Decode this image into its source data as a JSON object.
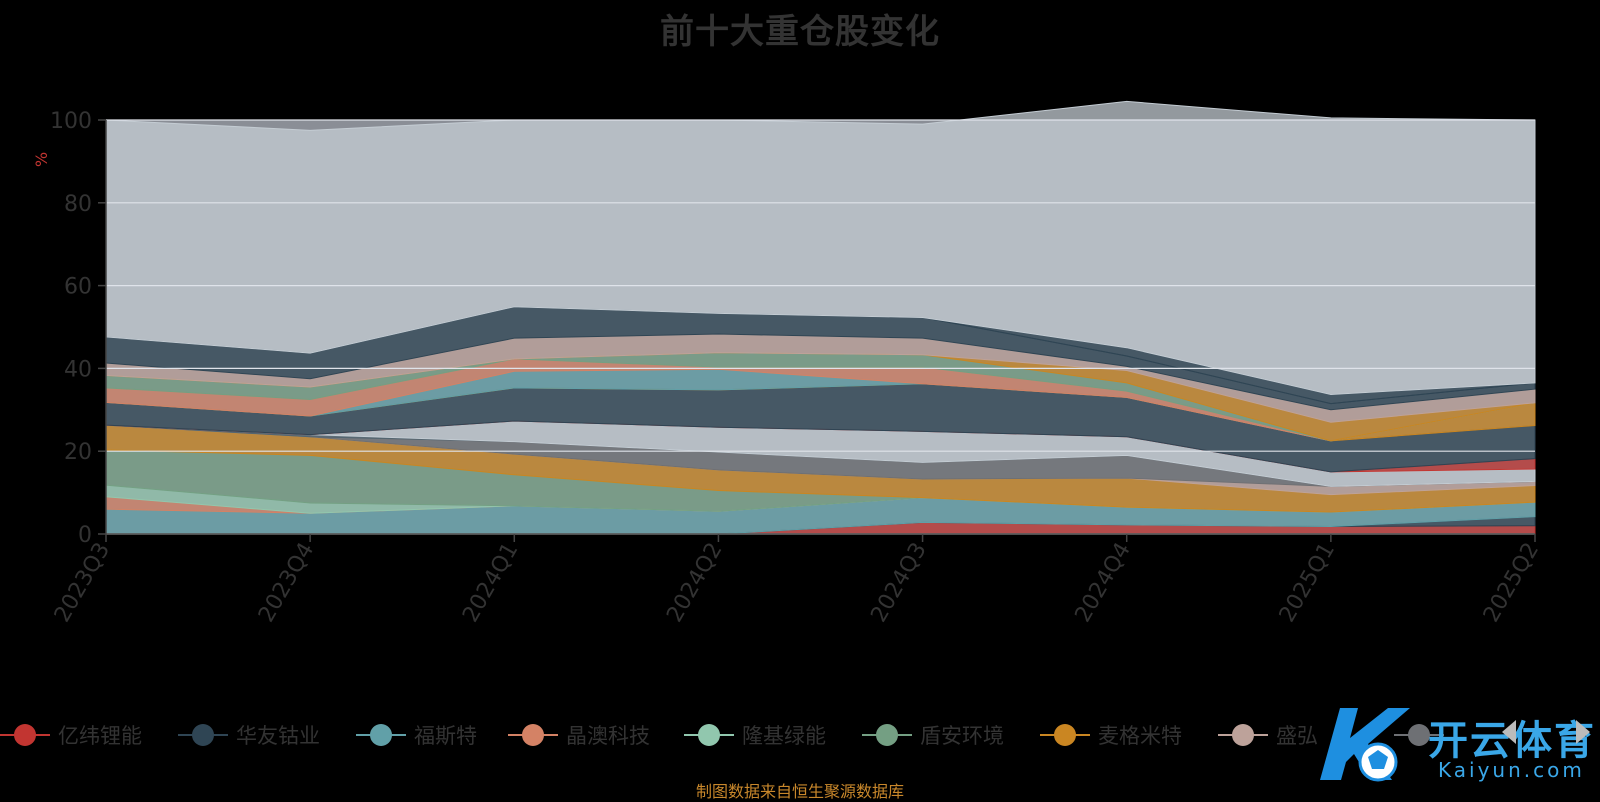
{
  "title": "前十大重仓股变化",
  "unit_label": "%",
  "source_note": "制图数据来自恒生聚源数据库",
  "watermark": {
    "chinese": "开云体育",
    "latin": "Kaiyun.com"
  },
  "chart_data": {
    "type": "area",
    "stacked": true,
    "x": [
      "2023Q3",
      "2023Q4",
      "2024Q1",
      "2024Q2",
      "2024Q3",
      "2024Q4",
      "2025Q1",
      "2025Q2"
    ],
    "ylim": [
      0,
      100
    ],
    "yticks": [
      0,
      20,
      40,
      60,
      80,
      100
    ],
    "ylabel": "%",
    "grid": true,
    "legend_position": "bottom",
    "series": [
      {
        "name": "亿纬锂能",
        "color": "#c23531",
        "values": [
          0,
          0,
          0,
          0,
          2.8,
          2.2,
          1.8,
          2.0
        ]
      },
      {
        "name": "",
        "color": "#2f4554",
        "values": [
          0,
          0,
          0,
          0,
          0,
          0,
          0,
          2.2
        ]
      },
      {
        "name": "福斯特",
        "color": "#61a0a8",
        "values": [
          6,
          5,
          6.8,
          5.5,
          6,
          4.3,
          3.5,
          3.5
        ]
      },
      {
        "name": "",
        "color": "#d48265",
        "values": [
          3,
          0,
          0,
          0,
          0,
          0,
          0,
          0
        ]
      },
      {
        "name": "",
        "color": "#91c7ae",
        "values": [
          2.8,
          2.5,
          0,
          0,
          0,
          0,
          0,
          0
        ]
      },
      {
        "name": "",
        "color": "#749f83",
        "values": [
          8.5,
          11.5,
          7.5,
          5,
          0,
          0,
          0,
          0
        ]
      },
      {
        "name": "",
        "color": "#ca8622",
        "values": [
          6,
          4.5,
          5,
          5,
          4.5,
          7,
          4.2,
          4
        ]
      },
      {
        "name": "",
        "color": "#bda29a",
        "values": [
          0,
          0,
          0,
          0,
          0,
          0,
          2,
          1
        ]
      },
      {
        "name": "",
        "color": "#6e7074",
        "values": [
          0,
          0,
          3,
          4.3,
          4,
          5.5,
          0,
          0
        ]
      },
      {
        "name": "",
        "color": "#546570",
        "values": [
          0,
          0.5,
          0,
          0,
          0,
          0,
          0,
          0
        ]
      },
      {
        "name": "",
        "color": "#c4ccd3",
        "values": [
          0,
          0,
          5,
          6,
          7.5,
          4.5,
          3.5,
          3.0
        ]
      },
      {
        "name": "",
        "color": "#c23531",
        "values": [
          0,
          0,
          0,
          0,
          0,
          0,
          0,
          2.5
        ]
      },
      {
        "name": "",
        "color": "#2f4554",
        "values": [
          5.5,
          4.5,
          8,
          9,
          11.5,
          9.5,
          7.5,
          8
        ]
      },
      {
        "name": "",
        "color": "#ca8622",
        "values": [
          0,
          0,
          0,
          0,
          0,
          0,
          0,
          5.5
        ]
      },
      {
        "name": "",
        "color": "#61a0a8",
        "values": [
          0,
          0,
          4,
          5,
          0,
          0,
          0,
          0
        ]
      },
      {
        "name": "",
        "color": "#d48265",
        "values": [
          3.5,
          4,
          3,
          0.5,
          4,
          1.5,
          0,
          0
        ]
      },
      {
        "name": "",
        "color": "#749f83",
        "values": [
          3,
          3,
          0,
          3.5,
          3,
          2,
          0,
          0
        ]
      },
      {
        "name": "",
        "color": "#ca8622",
        "values": [
          0,
          0,
          0,
          0,
          0,
          3,
          4.5,
          0
        ]
      },
      {
        "name": "",
        "color": "#bda29a",
        "values": [
          3,
          2,
          5,
          4.5,
          4,
          1,
          3,
          3.3
        ]
      },
      {
        "name": "",
        "color": "#2f4554",
        "values": [
          6.3,
          6.2,
          7.6,
          5,
          5,
          2.5,
          1.5,
          1.5
        ]
      },
      {
        "name": "",
        "color": "#2f4554",
        "values": [
          0,
          0,
          0,
          0,
          0,
          2,
          2.2,
          0
        ]
      },
      {
        "name": "",
        "color": "#c4ccd3",
        "values": [
          52.4,
          53.8,
          45.1,
          46.7,
          46.7,
          59.5,
          66.8,
          63.5
        ]
      }
    ]
  },
  "legend": [
    {
      "label": "亿纬锂能",
      "color": "#c23531"
    },
    {
      "label": "华友钴业",
      "color": "#2f4554"
    },
    {
      "label": "福斯特",
      "color": "#61a0a8"
    },
    {
      "label": "晶澳科技",
      "color": "#d48265"
    },
    {
      "label": "隆基绿能",
      "color": "#91c7ae"
    },
    {
      "label": "盾安环境",
      "color": "#749f83"
    },
    {
      "label": "麦格米特",
      "color": "#ca8622"
    },
    {
      "label": "盛弘",
      "color": "#bda29a"
    },
    {
      "label": "",
      "color": "#6e7074"
    }
  ],
  "icons": {
    "pager_prev": "triangle-left-icon",
    "pager_next": "triangle-right-icon",
    "watermark_logo": "kaiyun-logo-icon"
  }
}
